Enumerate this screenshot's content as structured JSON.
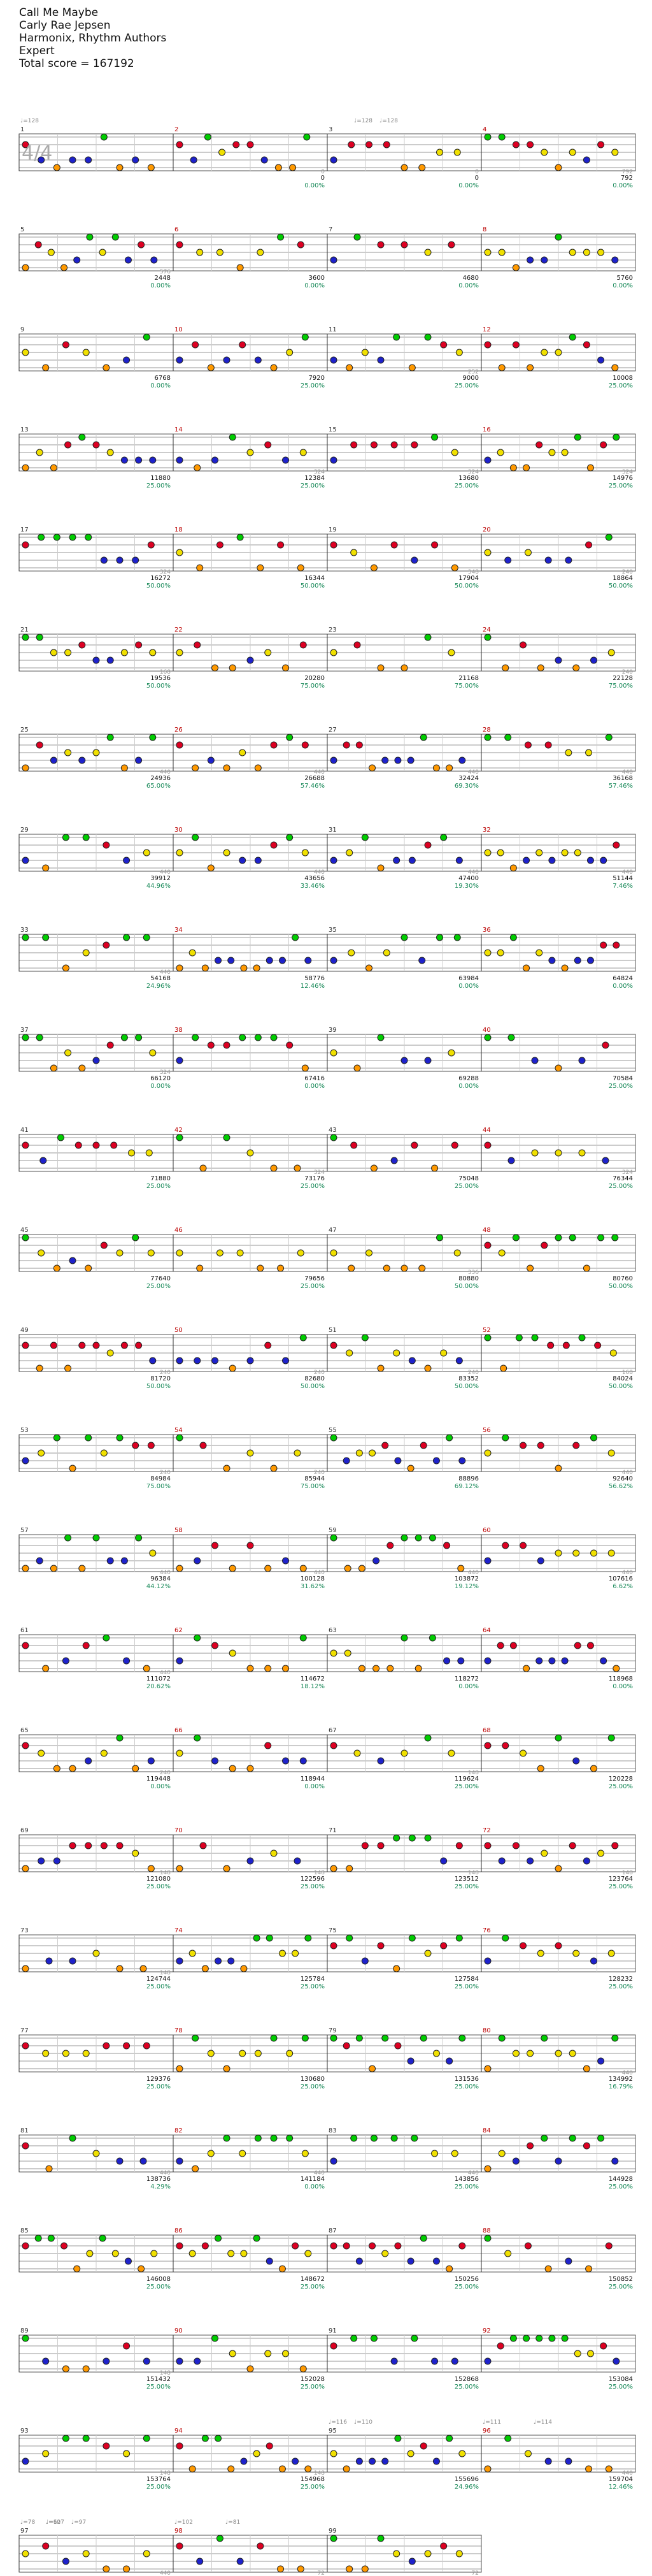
{
  "song": {
    "title": "Call Me Maybe",
    "artist": "Carly Rae Jepsen",
    "charter": "Harmonix, Rhythm Authors",
    "difficulty": "Expert",
    "total_label": "Total score = 167192"
  },
  "time_signature": "4/4",
  "lane_colors": [
    "#00cc00",
    "#dd0022",
    "#f0e000",
    "#1e22cc",
    "#ff9900"
  ],
  "tempo_markers": [
    {
      "measure": 1,
      "label": "♩=128"
    },
    {
      "measure": 3,
      "label": "♩=128"
    },
    {
      "measure": 3,
      "label": "♩=128"
    },
    {
      "measure": 95,
      "label": "♩=116"
    },
    {
      "measure": 95,
      "label": "♩=110"
    },
    {
      "measure": 96,
      "label": "♩=114"
    },
    {
      "measure": 96,
      "label": "♩=111"
    },
    {
      "measure": 97,
      "label": "♩=107"
    },
    {
      "measure": 97,
      "label": "♩=97"
    },
    {
      "measure": 97,
      "label": "♩=78"
    },
    {
      "measure": 97,
      "label": "♩=62"
    },
    {
      "measure": 98,
      "label": "♩=81"
    },
    {
      "measure": 98,
      "label": "♩=102"
    }
  ],
  "measures": [
    {
      "n": 1,
      "score": "",
      "pct": "",
      "small": ""
    },
    {
      "n": 2,
      "score": "0",
      "pct": "0.00%",
      "small": "0"
    },
    {
      "n": 3,
      "score": "0",
      "pct": "0.00%",
      "small": "0"
    },
    {
      "n": 4,
      "score": "792",
      "pct": "0.00%",
      "small": "792"
    },
    {
      "n": 5,
      "score": "2448",
      "pct": "0.00%",
      "small": "576"
    },
    {
      "n": 6,
      "score": "3600",
      "pct": "0.00%",
      "small": ""
    },
    {
      "n": 7,
      "score": "4680",
      "pct": "0.00%",
      "small": ""
    },
    {
      "n": 8,
      "score": "5760",
      "pct": "0.00%",
      "small": ""
    },
    {
      "n": 9,
      "score": "6768",
      "pct": "0.00%",
      "small": ""
    },
    {
      "n": 10,
      "score": "7920",
      "pct": "25.00%",
      "small": ""
    },
    {
      "n": 11,
      "score": "9000",
      "pct": "25.00%",
      "small": "252"
    },
    {
      "n": 12,
      "score": "10008",
      "pct": "25.00%",
      "small": ""
    },
    {
      "n": 13,
      "score": "11880",
      "pct": "25.00%",
      "small": ""
    },
    {
      "n": 14,
      "score": "12384",
      "pct": "25.00%",
      "small": "324"
    },
    {
      "n": 15,
      "score": "13680",
      "pct": "25.00%",
      "small": "324"
    },
    {
      "n": 16,
      "score": "14976",
      "pct": "25.00%",
      "small": "324"
    },
    {
      "n": 17,
      "score": "16272",
      "pct": "50.00%",
      "small": "324"
    },
    {
      "n": 18,
      "score": "16344",
      "pct": "50.00%",
      "small": ""
    },
    {
      "n": 19,
      "score": "17904",
      "pct": "50.00%",
      "small": "348"
    },
    {
      "n": 20,
      "score": "18864",
      "pct": "50.00%",
      "small": "240"
    },
    {
      "n": 21,
      "score": "19536",
      "pct": "50.00%",
      "small": "168"
    },
    {
      "n": 22,
      "score": "20280",
      "pct": "75.00%",
      "small": ""
    },
    {
      "n": 23,
      "score": "21168",
      "pct": "75.00%",
      "small": ""
    },
    {
      "n": 24,
      "score": "22128",
      "pct": "75.00%",
      "small": "240"
    },
    {
      "n": 25,
      "score": "24936",
      "pct": "65.00%",
      "small": "440"
    },
    {
      "n": 26,
      "score": "26688",
      "pct": "57.46%",
      "small": "440"
    },
    {
      "n": 27,
      "score": "32424",
      "pct": "69.30%",
      "small": "440"
    },
    {
      "n": 28,
      "score": "36168",
      "pct": "57.46%",
      "small": "440"
    },
    {
      "n": 29,
      "score": "39912",
      "pct": "44.96%",
      "small": "440"
    },
    {
      "n": 30,
      "score": "43656",
      "pct": "33.46%",
      "small": "440"
    },
    {
      "n": 31,
      "score": "47400",
      "pct": "19.30%",
      "small": "440"
    },
    {
      "n": 32,
      "score": "51144",
      "pct": "7.46%",
      "small": "440"
    },
    {
      "n": 33,
      "score": "54168",
      "pct": "24.96%",
      "small": "440"
    },
    {
      "n": 34,
      "score": "58776",
      "pct": "12.46%",
      "small": ""
    },
    {
      "n": 35,
      "score": "63984",
      "pct": "0.00%",
      "small": ""
    },
    {
      "n": 36,
      "score": "64824",
      "pct": "0.00%",
      "small": ""
    },
    {
      "n": 37,
      "score": "66120",
      "pct": "0.00%",
      "small": "324"
    },
    {
      "n": 38,
      "score": "67416",
      "pct": "0.00%",
      "small": ""
    },
    {
      "n": 39,
      "score": "69288",
      "pct": "0.00%",
      "small": ""
    },
    {
      "n": 40,
      "score": "70584",
      "pct": "25.00%",
      "small": ""
    },
    {
      "n": 41,
      "score": "71880",
      "pct": "25.00%",
      "small": ""
    },
    {
      "n": 42,
      "score": "73176",
      "pct": "25.00%",
      "small": "324"
    },
    {
      "n": 43,
      "score": "75048",
      "pct": "25.00%",
      "small": ""
    },
    {
      "n": 44,
      "score": "76344",
      "pct": "25.00%",
      "small": "324"
    },
    {
      "n": 45,
      "score": "77640",
      "pct": "25.00%",
      "small": ""
    },
    {
      "n": 46,
      "score": "79656",
      "pct": "25.00%",
      "small": ""
    },
    {
      "n": 47,
      "score": "80880",
      "pct": "50.00%",
      "small": "336"
    },
    {
      "n": 48,
      "score": "80760",
      "pct": "50.00%",
      "small": ""
    },
    {
      "n": 49,
      "score": "81720",
      "pct": "50.00%",
      "small": "240"
    },
    {
      "n": 50,
      "score": "82680",
      "pct": "50.00%",
      "small": "240"
    },
    {
      "n": 51,
      "score": "83352",
      "pct": "50.00%",
      "small": "240"
    },
    {
      "n": 52,
      "score": "84024",
      "pct": "50.00%",
      "small": "168"
    },
    {
      "n": 53,
      "score": "84984",
      "pct": "75.00%",
      "small": "240"
    },
    {
      "n": 54,
      "score": "85944",
      "pct": "75.00%",
      "small": "240"
    },
    {
      "n": 55,
      "score": "88896",
      "pct": "69.12%",
      "small": ""
    },
    {
      "n": 56,
      "score": "92640",
      "pct": "56.62%",
      "small": "440"
    },
    {
      "n": 57,
      "score": "96384",
      "pct": "44.12%",
      "small": "440"
    },
    {
      "n": 58,
      "score": "100128",
      "pct": "31.62%",
      "small": "440"
    },
    {
      "n": 59,
      "score": "103872",
      "pct": "19.12%",
      "small": "440"
    },
    {
      "n": 60,
      "score": "107616",
      "pct": "6.62%",
      "small": "440"
    },
    {
      "n": 61,
      "score": "111072",
      "pct": "20.62%",
      "small": "440"
    },
    {
      "n": 62,
      "score": "114672",
      "pct": "18.12%",
      "small": ""
    },
    {
      "n": 63,
      "score": "118272",
      "pct": "0.00%",
      "small": ""
    },
    {
      "n": 64,
      "score": "118968",
      "pct": "0.00%",
      "small": ""
    },
    {
      "n": 65,
      "score": "119448",
      "pct": "0.00%",
      "small": "240"
    },
    {
      "n": 66,
      "score": "118944",
      "pct": "0.00%",
      "small": ""
    },
    {
      "n": 67,
      "score": "119624",
      "pct": "25.00%",
      "small": "148"
    },
    {
      "n": 68,
      "score": "120228",
      "pct": "25.00%",
      "small": ""
    },
    {
      "n": 69,
      "score": "121080",
      "pct": "25.00%",
      "small": "148"
    },
    {
      "n": 70,
      "score": "122596",
      "pct": "25.00%",
      "small": "148"
    },
    {
      "n": 71,
      "score": "123512",
      "pct": "25.00%",
      "small": "148"
    },
    {
      "n": 72,
      "score": "123764",
      "pct": "25.00%",
      "small": "148"
    },
    {
      "n": 73,
      "score": "124744",
      "pct": "25.00%",
      "small": "148"
    },
    {
      "n": 74,
      "score": "125784",
      "pct": "25.00%",
      "small": ""
    },
    {
      "n": 75,
      "score": "127584",
      "pct": "25.00%",
      "small": ""
    },
    {
      "n": 76,
      "score": "128232",
      "pct": "25.00%",
      "small": ""
    },
    {
      "n": 77,
      "score": "129376",
      "pct": "25.00%",
      "small": ""
    },
    {
      "n": 78,
      "score": "130680",
      "pct": "25.00%",
      "small": ""
    },
    {
      "n": 79,
      "score": "131536",
      "pct": "25.00%",
      "small": ""
    },
    {
      "n": 80,
      "score": "134992",
      "pct": "16.79%",
      "small": "440"
    },
    {
      "n": 81,
      "score": "138736",
      "pct": "4.29%",
      "small": "440"
    },
    {
      "n": 82,
      "score": "141184",
      "pct": "0.00%",
      "small": "440"
    },
    {
      "n": 83,
      "score": "143856",
      "pct": "25.00%",
      "small": "440"
    },
    {
      "n": 84,
      "score": "144928",
      "pct": "25.00%",
      "small": ""
    },
    {
      "n": 85,
      "score": "146008",
      "pct": "25.00%",
      "small": ""
    },
    {
      "n": 86,
      "score": "148672",
      "pct": "25.00%",
      "small": ""
    },
    {
      "n": 87,
      "score": "150256",
      "pct": "25.00%",
      "small": ""
    },
    {
      "n": 88,
      "score": "150852",
      "pct": "25.00%",
      "small": ""
    },
    {
      "n": 89,
      "score": "151432",
      "pct": "25.00%",
      "small": "148"
    },
    {
      "n": 90,
      "score": "152028",
      "pct": "25.00%",
      "small": ""
    },
    {
      "n": 91,
      "score": "152868",
      "pct": "25.00%",
      "small": ""
    },
    {
      "n": 92,
      "score": "153084",
      "pct": "25.00%",
      "small": ""
    },
    {
      "n": 93,
      "score": "153764",
      "pct": "25.00%",
      "small": "148"
    },
    {
      "n": 94,
      "score": "154968",
      "pct": "25.00%",
      "small": "148"
    },
    {
      "n": 95,
      "score": "155696",
      "pct": "24.96%",
      "small": ""
    },
    {
      "n": 96,
      "score": "159704",
      "pct": "12.46%",
      "small": "440"
    },
    {
      "n": 97,
      "score": "164312",
      "pct": "0.00%",
      "small": "440"
    },
    {
      "n": 98,
      "score": "166904",
      "pct": "0.00%",
      "small": "72"
    },
    {
      "n": 99,
      "score": "167192",
      "pct": "0.00%",
      "small": "72"
    }
  ]
}
